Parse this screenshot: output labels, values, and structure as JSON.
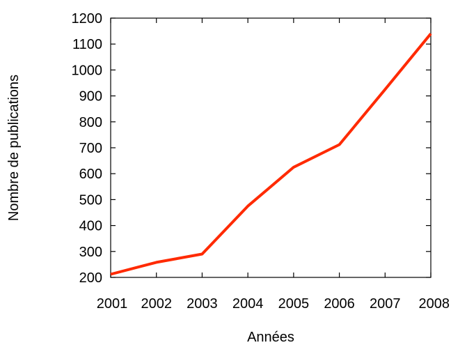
{
  "chart_data": {
    "type": "line",
    "title": "",
    "xlabel": "Années",
    "ylabel": "Nombre de publications",
    "x": [
      2001,
      2002,
      2003,
      2004,
      2005,
      2006,
      2007,
      2008
    ],
    "xticks": [
      "2001",
      "2002",
      "2003",
      "2004",
      "2005",
      "2006",
      "2007",
      "2008"
    ],
    "yticks": [
      "200",
      "300",
      "400",
      "500",
      "600",
      "700",
      "800",
      "900",
      "1000",
      "1100",
      "1200"
    ],
    "xlim": [
      2001,
      2008
    ],
    "ylim": [
      200,
      1200
    ],
    "grid": false,
    "series": [
      {
        "values": [
          212,
          258,
          290,
          475,
          625,
          712,
          925,
          1140
        ],
        "color": "#ff2a00"
      }
    ]
  }
}
